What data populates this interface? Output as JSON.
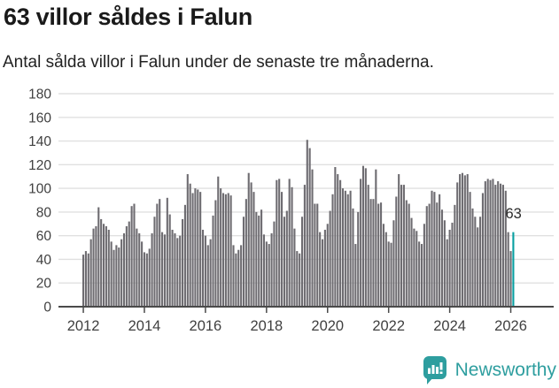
{
  "header": {
    "title": "63 villor såldes i Falun",
    "subtitle": "Antal sålda villor i Falun under de senaste tre månaderna."
  },
  "chart_data": {
    "type": "bar",
    "title": "63 villor såldes i Falun",
    "xlabel": "",
    "ylabel": "",
    "frequency": "monthly",
    "start_month": "2012-01",
    "end_month": "2026-02",
    "values": [
      44,
      47,
      45,
      57,
      66,
      68,
      84,
      74,
      70,
      68,
      65,
      55,
      48,
      52,
      50,
      57,
      62,
      68,
      72,
      85,
      87,
      66,
      62,
      55,
      46,
      45,
      49,
      62,
      76,
      87,
      91,
      63,
      61,
      92,
      78,
      65,
      62,
      58,
      60,
      74,
      86,
      112,
      104,
      96,
      100,
      99,
      97,
      65,
      60,
      52,
      57,
      77,
      90,
      110,
      100,
      96,
      95,
      96,
      94,
      52,
      45,
      48,
      52,
      76,
      91,
      113,
      105,
      97,
      80,
      77,
      82,
      61,
      55,
      53,
      62,
      72,
      107,
      108,
      97,
      76,
      81,
      108,
      101,
      66,
      47,
      45,
      76,
      103,
      141,
      134,
      116,
      87,
      87,
      63,
      57,
      65,
      70,
      81,
      95,
      118,
      112,
      107,
      100,
      98,
      95,
      98,
      83,
      53,
      80,
      108,
      119,
      117,
      103,
      91,
      91,
      116,
      87,
      88,
      70,
      63,
      55,
      54,
      73,
      93,
      112,
      103,
      103,
      90,
      87,
      75,
      66,
      64,
      55,
      53,
      70,
      85,
      87,
      98,
      97,
      88,
      95,
      82,
      73,
      57,
      65,
      71,
      86,
      105,
      112,
      113,
      111,
      112,
      97,
      83,
      76,
      67,
      76,
      96,
      106,
      108,
      107,
      108,
      103,
      106,
      104,
      103,
      98,
      63,
      47,
      63
    ],
    "highlight": {
      "index": 169,
      "value": 63,
      "label": "63"
    },
    "y_ticks": [
      0,
      20,
      40,
      60,
      80,
      100,
      120,
      140,
      160,
      180
    ],
    "ylim": [
      0,
      185
    ],
    "x_ticks": [
      "2012",
      "2014",
      "2016",
      "2018",
      "2020",
      "2022",
      "2024",
      "2026"
    ],
    "grid": true,
    "legend": "none",
    "colors": {
      "bar": "#6E6C71",
      "highlight": "#089FA1",
      "grid": "#E0E0E0",
      "axis": "#4A4A4A",
      "tick_text": "#404040",
      "annotation_text": "#2B2B2B"
    }
  },
  "branding": {
    "logo_text": "Newsworthy",
    "logo_color": "#2E9E9F"
  }
}
